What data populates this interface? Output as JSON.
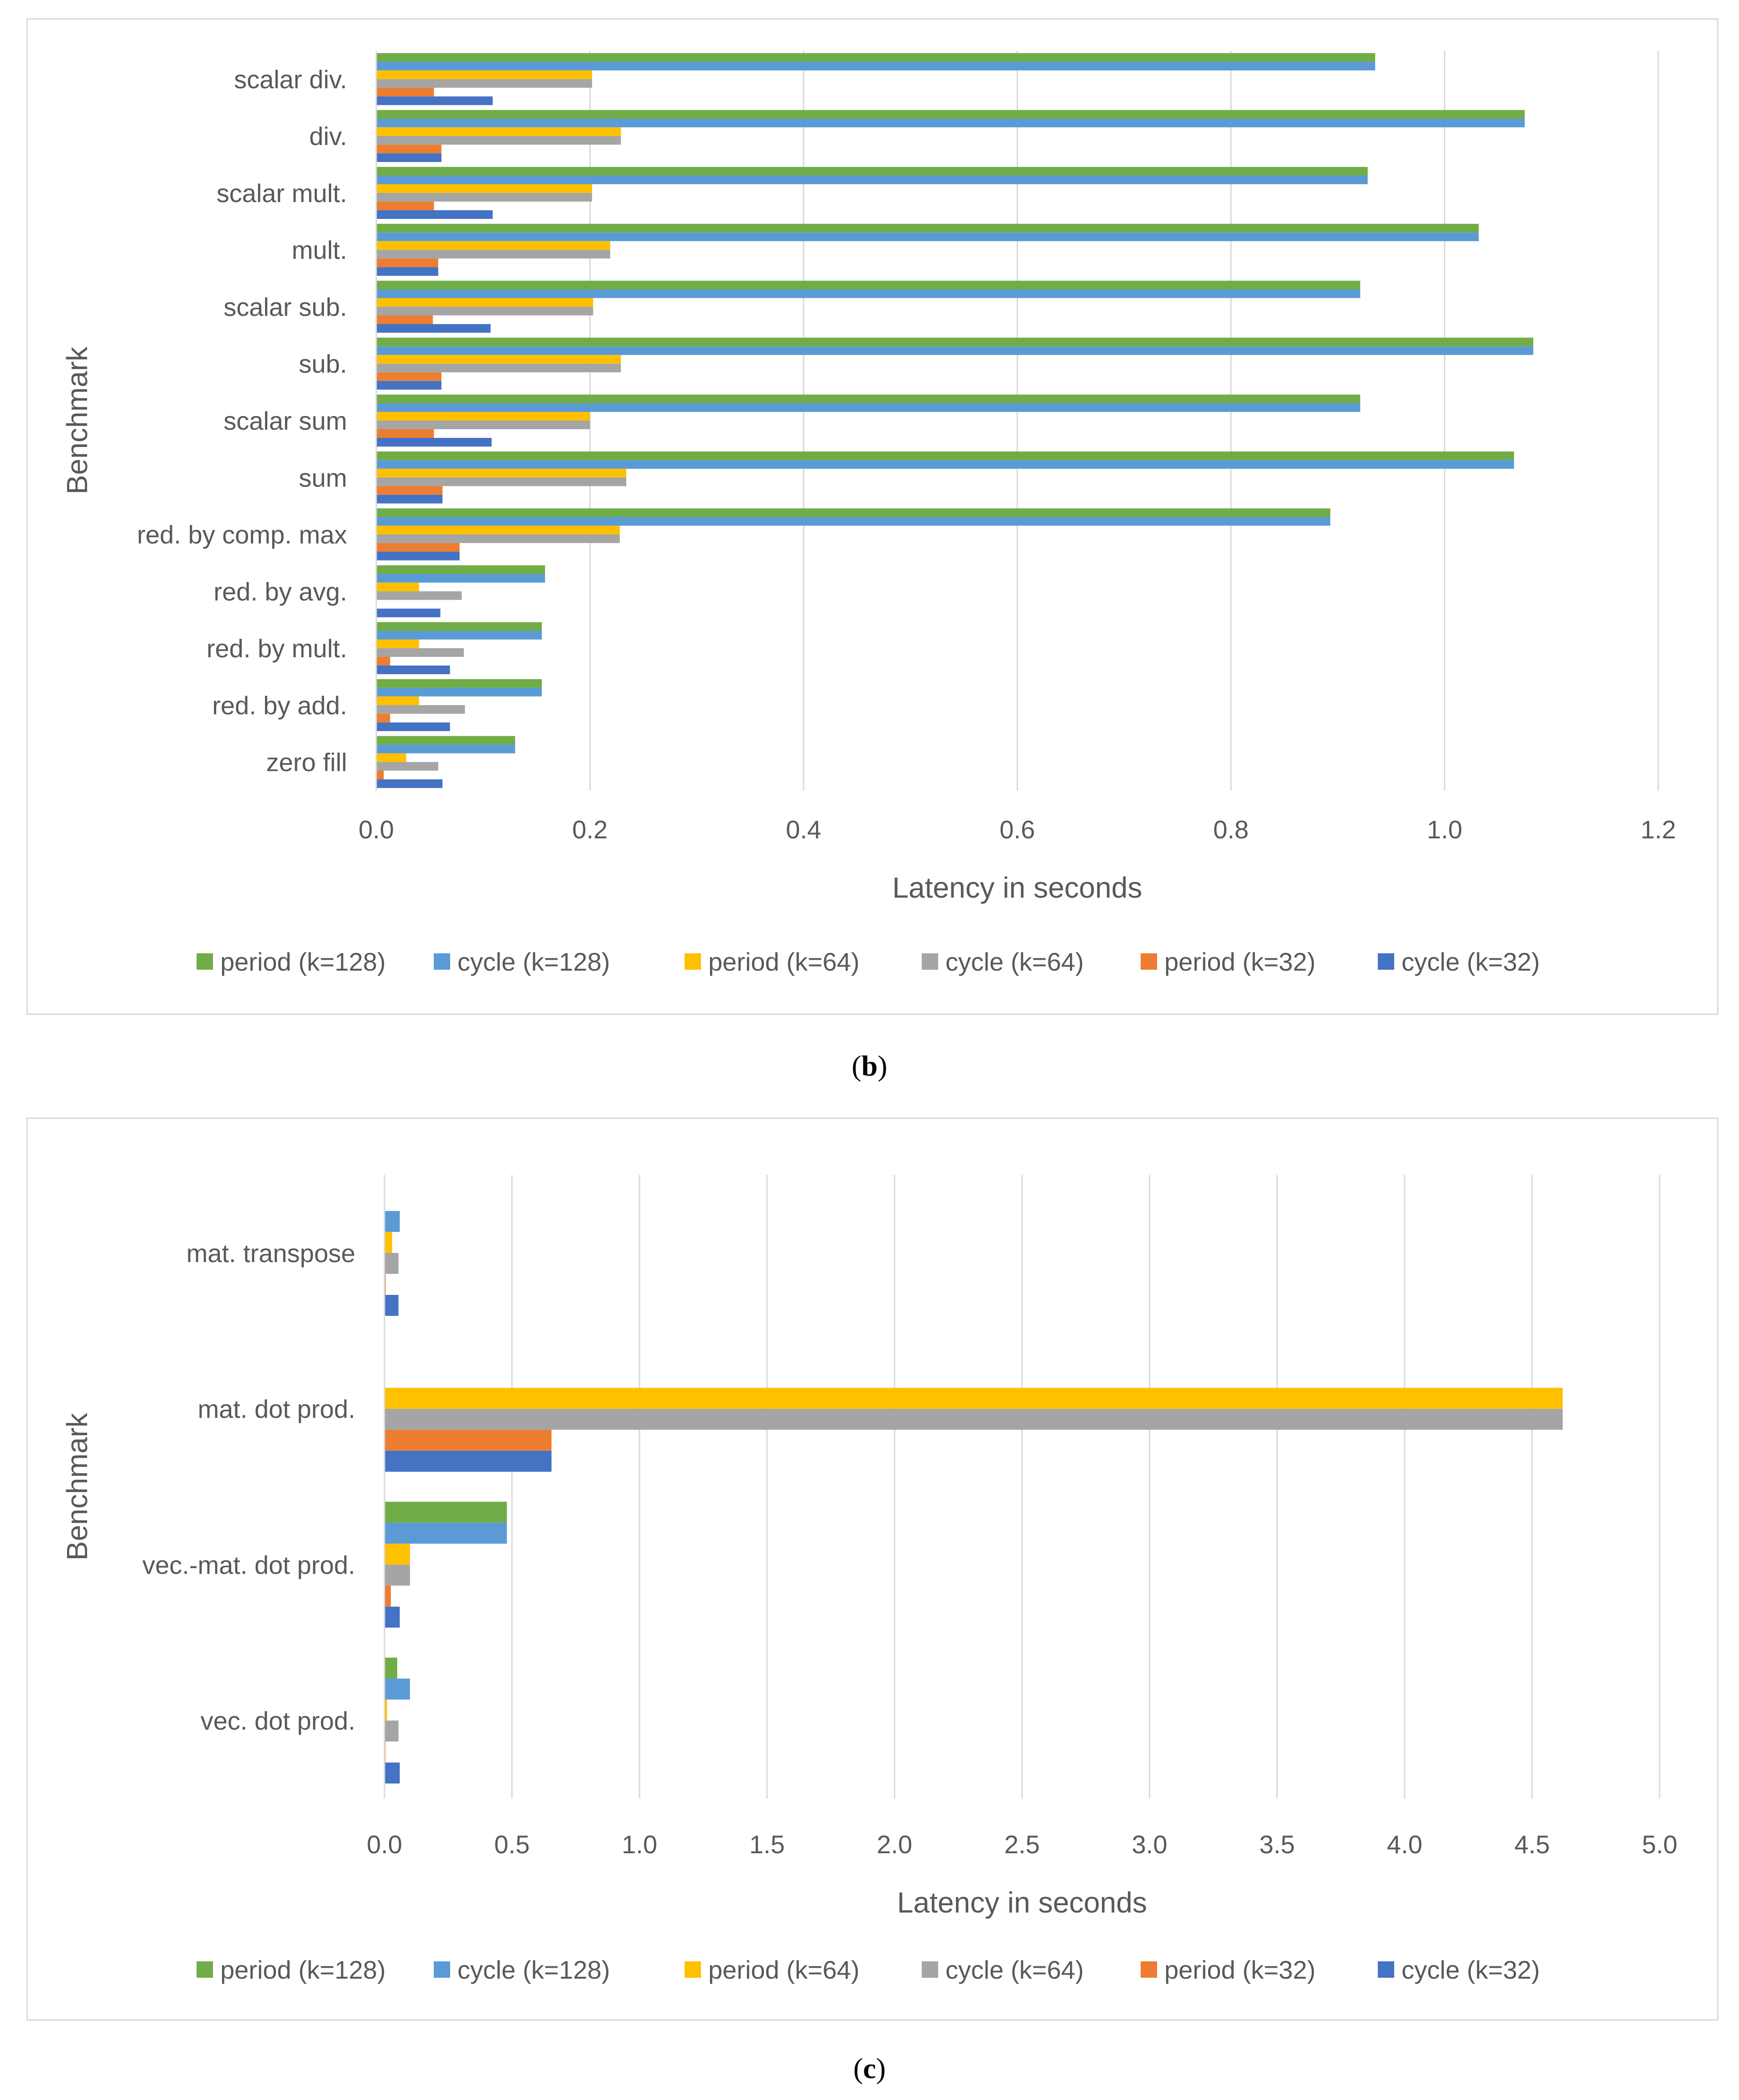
{
  "chart_data": [
    {
      "id": "b",
      "type": "bar",
      "orientation": "horizontal",
      "caption_label": "b",
      "xlabel": "Latency in seconds",
      "ylabel": "Benchmark",
      "xlim": [
        0,
        1.2
      ],
      "xticks": [
        "0.0",
        "0.2",
        "0.4",
        "0.6",
        "0.8",
        "1.0",
        "1.2"
      ],
      "tick_values": [
        0,
        0.2,
        0.4,
        0.6,
        0.8,
        1.0,
        1.2
      ],
      "grid": true,
      "legend_position": "bottom",
      "categories": [
        "scalar div.",
        "div.",
        "scalar mult.",
        "mult.",
        "scalar sub.",
        "sub.",
        "scalar sum",
        "sum",
        "red. by comp. max",
        "red. by avg.",
        "red. by mult.",
        "red. by add.",
        "zero fill"
      ],
      "series": [
        {
          "name": "period (k=128)",
          "color": "#70ad47",
          "values": [
            0.935,
            1.075,
            0.928,
            1.032,
            0.921,
            1.083,
            0.921,
            1.065,
            0.893,
            0.158,
            0.155,
            0.155,
            0.13
          ]
        },
        {
          "name": "cycle (k=128)",
          "color": "#5b9bd5",
          "values": [
            0.935,
            1.075,
            0.928,
            1.032,
            0.921,
            1.083,
            0.921,
            1.065,
            0.893,
            0.158,
            0.155,
            0.155,
            0.13
          ]
        },
        {
          "name": "period (k=64)",
          "color": "#ffc000",
          "values": [
            0.202,
            0.229,
            0.202,
            0.219,
            0.203,
            0.229,
            0.2,
            0.234,
            0.228,
            0.04,
            0.04,
            0.04,
            0.028
          ]
        },
        {
          "name": "cycle (k=64)",
          "color": "#a5a5a5",
          "values": [
            0.202,
            0.229,
            0.202,
            0.219,
            0.203,
            0.229,
            0.2,
            0.234,
            0.228,
            0.08,
            0.082,
            0.083,
            0.058
          ]
        },
        {
          "name": "period (k=32)",
          "color": "#ed7d31",
          "values": [
            0.054,
            0.061,
            0.054,
            0.058,
            0.053,
            0.061,
            0.054,
            0.062,
            0.078,
            0.0,
            0.013,
            0.013,
            0.007
          ]
        },
        {
          "name": "cycle (k=32)",
          "color": "#4472c4",
          "values": [
            0.109,
            0.061,
            0.109,
            0.058,
            0.107,
            0.061,
            0.108,
            0.062,
            0.078,
            0.06,
            0.069,
            0.069,
            0.062
          ]
        }
      ]
    },
    {
      "id": "c",
      "type": "bar",
      "orientation": "horizontal",
      "caption_label": "c",
      "xlabel": "Latency in seconds",
      "ylabel": "Benchmark",
      "xlim": [
        0,
        5.0
      ],
      "xticks": [
        "0.0",
        "0.5",
        "1.0",
        "1.5",
        "2.0",
        "2.5",
        "3.0",
        "3.5",
        "4.0",
        "4.5",
        "5.0"
      ],
      "tick_values": [
        0,
        0.5,
        1.0,
        1.5,
        2.0,
        2.5,
        3.0,
        3.5,
        4.0,
        4.5,
        5.0
      ],
      "grid": true,
      "legend_position": "bottom",
      "categories": [
        "mat. transpose",
        "mat. dot prod.",
        "vec.-mat. dot prod.",
        "vec. dot prod."
      ],
      "series": [
        {
          "name": "period (k=128)",
          "color": "#70ad47",
          "values": [
            0.0,
            0.0,
            0.48,
            0.05
          ]
        },
        {
          "name": "cycle (k=128)",
          "color": "#5b9bd5",
          "values": [
            0.06,
            0.0,
            0.48,
            0.1
          ]
        },
        {
          "name": "period (k=64)",
          "color": "#ffc000",
          "values": [
            0.03,
            4.62,
            0.1,
            0.01
          ]
        },
        {
          "name": "cycle (k=64)",
          "color": "#a5a5a5",
          "values": [
            0.055,
            4.62,
            0.1,
            0.055
          ]
        },
        {
          "name": "period (k=32)",
          "color": "#ed7d31",
          "values": [
            0.005,
            0.655,
            0.025,
            0.004
          ]
        },
        {
          "name": "cycle (k=32)",
          "color": "#4472c4",
          "values": [
            0.055,
            0.655,
            0.06,
            0.06
          ]
        }
      ]
    }
  ]
}
